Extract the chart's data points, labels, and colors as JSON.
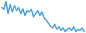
{
  "values": [
    75,
    72,
    85,
    65,
    80,
    68,
    78,
    70,
    75,
    65,
    73,
    62,
    70,
    68,
    72,
    60,
    65,
    70,
    62,
    68,
    58,
    55,
    50,
    45,
    42,
    48,
    40,
    44,
    38,
    42,
    36,
    40,
    42,
    38,
    44,
    36,
    40,
    38,
    42,
    36
  ],
  "line_color": "#4aa3df",
  "linewidth": 1.4,
  "background_color": "#ffffff"
}
